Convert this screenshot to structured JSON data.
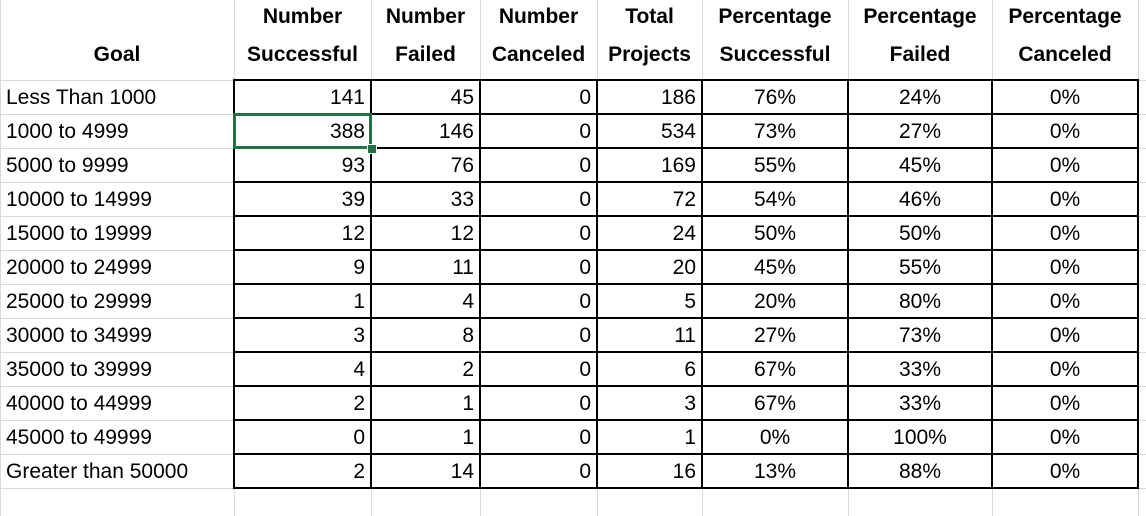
{
  "headers": [
    {
      "line1": "",
      "line2": "Goal"
    },
    {
      "line1": "Number",
      "line2": "Successful"
    },
    {
      "line1": "Number",
      "line2": "Failed"
    },
    {
      "line1": "Number",
      "line2": "Canceled"
    },
    {
      "line1": "Total",
      "line2": "Projects"
    },
    {
      "line1": "Percentage",
      "line2": "Successful"
    },
    {
      "line1": "Percentage",
      "line2": "Failed"
    },
    {
      "line1": "Percentage",
      "line2": "Canceled"
    }
  ],
  "rows": [
    {
      "goal": "Less Than 1000",
      "successful": "141",
      "failed": "45",
      "canceled": "0",
      "total": "186",
      "pct_successful": "76%",
      "pct_failed": "24%",
      "pct_canceled": "0%"
    },
    {
      "goal": "1000 to 4999",
      "successful": "388",
      "failed": "146",
      "canceled": "0",
      "total": "534",
      "pct_successful": "73%",
      "pct_failed": "27%",
      "pct_canceled": "0%"
    },
    {
      "goal": "5000 to 9999",
      "successful": "93",
      "failed": "76",
      "canceled": "0",
      "total": "169",
      "pct_successful": "55%",
      "pct_failed": "45%",
      "pct_canceled": "0%"
    },
    {
      "goal": "10000 to 14999",
      "successful": "39",
      "failed": "33",
      "canceled": "0",
      "total": "72",
      "pct_successful": "54%",
      "pct_failed": "46%",
      "pct_canceled": "0%"
    },
    {
      "goal": "15000 to 19999",
      "successful": "12",
      "failed": "12",
      "canceled": "0",
      "total": "24",
      "pct_successful": "50%",
      "pct_failed": "50%",
      "pct_canceled": "0%"
    },
    {
      "goal": "20000 to 24999",
      "successful": "9",
      "failed": "11",
      "canceled": "0",
      "total": "20",
      "pct_successful": "45%",
      "pct_failed": "55%",
      "pct_canceled": "0%"
    },
    {
      "goal": "25000 to 29999",
      "successful": "1",
      "failed": "4",
      "canceled": "0",
      "total": "5",
      "pct_successful": "20%",
      "pct_failed": "80%",
      "pct_canceled": "0%"
    },
    {
      "goal": "30000 to 34999",
      "successful": "3",
      "failed": "8",
      "canceled": "0",
      "total": "11",
      "pct_successful": "27%",
      "pct_failed": "73%",
      "pct_canceled": "0%"
    },
    {
      "goal": "35000 to 39999",
      "successful": "4",
      "failed": "2",
      "canceled": "0",
      "total": "6",
      "pct_successful": "67%",
      "pct_failed": "33%",
      "pct_canceled": "0%"
    },
    {
      "goal": "40000 to 44999",
      "successful": "2",
      "failed": "1",
      "canceled": "0",
      "total": "3",
      "pct_successful": "67%",
      "pct_failed": "33%",
      "pct_canceled": "0%"
    },
    {
      "goal": "45000 to 49999",
      "successful": "0",
      "failed": "1",
      "canceled": "0",
      "total": "1",
      "pct_successful": "0%",
      "pct_failed": "100%",
      "pct_canceled": "0%"
    },
    {
      "goal": "Greater than 50000",
      "successful": "2",
      "failed": "14",
      "canceled": "0",
      "total": "16",
      "pct_successful": "13%",
      "pct_failed": "88%",
      "pct_canceled": "0%"
    }
  ],
  "selected_cell": {
    "row": 1,
    "column": "successful"
  },
  "colors": {
    "gridline": "#d9d9d9",
    "border": "#000000",
    "selection": "#217346"
  }
}
